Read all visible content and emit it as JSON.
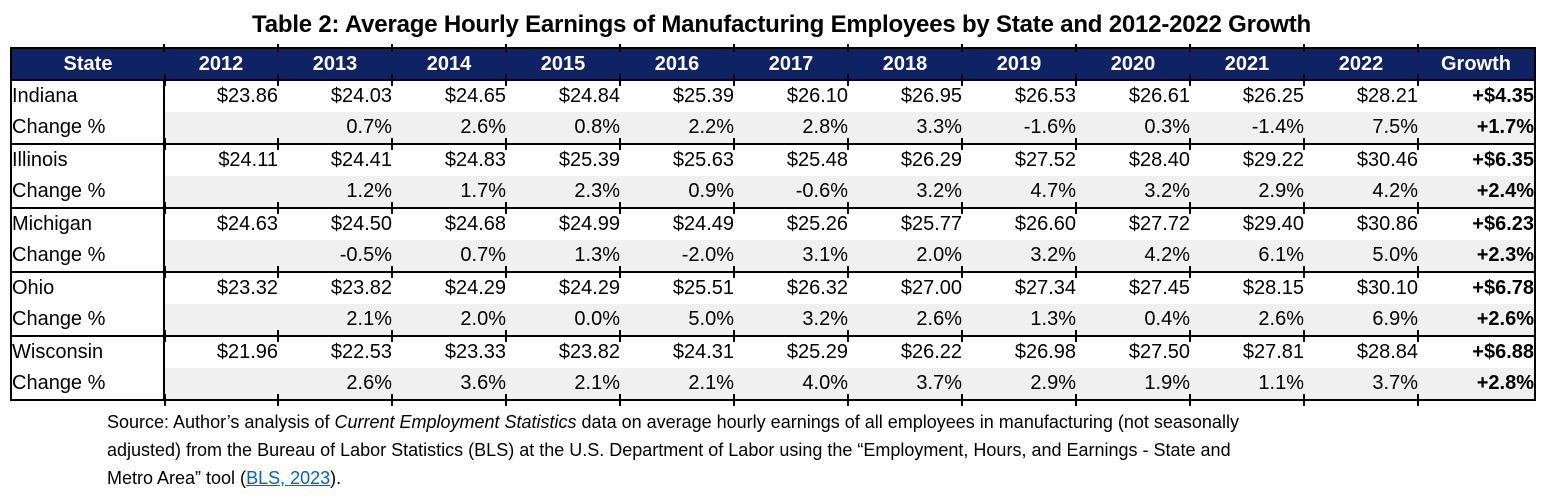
{
  "title": "Table 2: Average Hourly Earnings of Manufacturing Employees by State and 2012-2022 Growth",
  "colors": {
    "header_bg": "#0E2264",
    "header_text": "#FFFFFF",
    "change_row_bg": "#F0F0F0",
    "border": "#000000",
    "link": "#0563C1"
  },
  "table": {
    "columns": [
      "State",
      "2012",
      "2013",
      "2014",
      "2015",
      "2016",
      "2017",
      "2018",
      "2019",
      "2020",
      "2021",
      "2022",
      "Growth"
    ],
    "change_label": "Change %",
    "states": [
      {
        "name": "Indiana",
        "earnings": [
          "$23.86",
          "$24.03",
          "$24.65",
          "$24.84",
          "$25.39",
          "$26.10",
          "$26.95",
          "$26.53",
          "$26.61",
          "$26.25",
          "$28.21"
        ],
        "growth": "+$4.35",
        "changes": [
          "",
          "0.7%",
          "2.6%",
          "0.8%",
          "2.2%",
          "2.8%",
          "3.3%",
          "-1.6%",
          "0.3%",
          "-1.4%",
          "7.5%"
        ],
        "growth_change": "+1.7%"
      },
      {
        "name": "Illinois",
        "earnings": [
          "$24.11",
          "$24.41",
          "$24.83",
          "$25.39",
          "$25.63",
          "$25.48",
          "$26.29",
          "$27.52",
          "$28.40",
          "$29.22",
          "$30.46"
        ],
        "growth": "+$6.35",
        "changes": [
          "",
          "1.2%",
          "1.7%",
          "2.3%",
          "0.9%",
          "-0.6%",
          "3.2%",
          "4.7%",
          "3.2%",
          "2.9%",
          "4.2%"
        ],
        "growth_change": "+2.4%"
      },
      {
        "name": "Michigan",
        "earnings": [
          "$24.63",
          "$24.50",
          "$24.68",
          "$24.99",
          "$24.49",
          "$25.26",
          "$25.77",
          "$26.60",
          "$27.72",
          "$29.40",
          "$30.86"
        ],
        "growth": "+$6.23",
        "changes": [
          "",
          "-0.5%",
          "0.7%",
          "1.3%",
          "-2.0%",
          "3.1%",
          "2.0%",
          "3.2%",
          "4.2%",
          "6.1%",
          "5.0%"
        ],
        "growth_change": "+2.3%"
      },
      {
        "name": "Ohio",
        "earnings": [
          "$23.32",
          "$23.82",
          "$24.29",
          "$24.29",
          "$25.51",
          "$26.32",
          "$27.00",
          "$27.34",
          "$27.45",
          "$28.15",
          "$30.10"
        ],
        "growth": "+$6.78",
        "changes": [
          "",
          "2.1%",
          "2.0%",
          "0.0%",
          "5.0%",
          "3.2%",
          "2.6%",
          "1.3%",
          "0.4%",
          "2.6%",
          "6.9%"
        ],
        "growth_change": "+2.6%"
      },
      {
        "name": "Wisconsin",
        "earnings": [
          "$21.96",
          "$22.53",
          "$23.33",
          "$23.82",
          "$24.31",
          "$25.29",
          "$26.22",
          "$26.98",
          "$27.50",
          "$27.81",
          "$28.84"
        ],
        "growth": "+$6.88",
        "changes": [
          "",
          "2.6%",
          "3.6%",
          "2.1%",
          "2.1%",
          "4.0%",
          "3.7%",
          "2.9%",
          "1.9%",
          "1.1%",
          "3.7%"
        ],
        "growth_change": "+2.8%"
      }
    ]
  },
  "source": {
    "segments": [
      {
        "text": "Source: Author’s analysis of ",
        "style": "normal"
      },
      {
        "text": "Current Employment Statistics",
        "style": "italic"
      },
      {
        "text": " data on average hourly earnings of all employees in manufacturing (not seasonally",
        "style": "normal"
      },
      {
        "break": true
      },
      {
        "text": "adjusted) from the Bureau of Labor Statistics (BLS) at the U.S. Department of Labor using the “Employment, Hours, and Earnings - State and",
        "style": "normal"
      },
      {
        "break": true
      },
      {
        "text": "Metro Area” tool (",
        "style": "normal"
      },
      {
        "text": "BLS, 2023",
        "style": "link"
      },
      {
        "text": ").",
        "style": "normal"
      }
    ]
  }
}
